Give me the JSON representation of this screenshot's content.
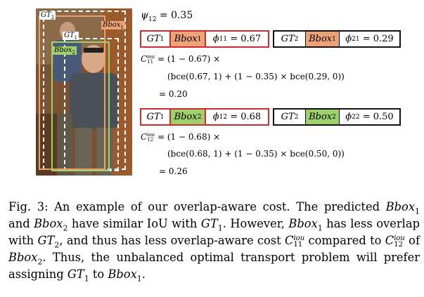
{
  "figure": {
    "labels": {
      "gt2": "GT",
      "gt2_sub": "2",
      "gt1": "GT",
      "gt1_sub": "1",
      "bbox1": "Bbox",
      "bbox1_sub": "1",
      "bbox2": "Bbox",
      "bbox2_sub": "2"
    },
    "colors": {
      "red": "#d12a2a",
      "orange": "#eea27a",
      "green": "#9ed06c"
    }
  },
  "psi": {
    "lhs": "ψ",
    "sub": "12",
    "value": "= 0.35"
  },
  "row1": {
    "left": {
      "gt": "GT",
      "gt_sub": "1",
      "bbox": "Bbox",
      "bbox_sub": "1",
      "phi": "ϕ",
      "phi_sub": "11",
      "value": "= 0.67"
    },
    "right": {
      "gt": "GT",
      "gt_sub": "2",
      "bbox": "Bbox",
      "bbox_sub": "1",
      "phi": "ϕ",
      "phi_sub": "21",
      "value": "= 0.29"
    }
  },
  "cost1": {
    "c": "C",
    "sup": "iou",
    "sub": "11",
    "line1": "= (1 − 0.67) ×",
    "line2": "(bce(0.67, 1) + (1 − 0.35) × bce(0.29, 0))",
    "line3": "= 0.20"
  },
  "row2": {
    "left": {
      "gt": "GT",
      "gt_sub": "1",
      "bbox": "Bbox",
      "bbox_sub": "2",
      "phi": "ϕ",
      "phi_sub": "12",
      "value": "= 0.68"
    },
    "right": {
      "gt": "GT",
      "gt_sub": "2",
      "bbox": "Bbox",
      "bbox_sub": "2",
      "phi": "ϕ",
      "phi_sub": "22",
      "value": "= 0.50"
    }
  },
  "cost2": {
    "c": "C",
    "sup": "iou",
    "sub": "12",
    "line1": "= (1 − 0.68) ×",
    "line2": "(bce(0.68, 1) + (1 − 0.35) × bce(0.50, 0))",
    "line3": "= 0.26"
  },
  "caption": {
    "p1": "Fig. 3: An example of our overlap-aware cost. The predicted ",
    "bbox": "Bbox",
    "gt": "GT",
    "s1": "1",
    "s2": "2",
    "p2": " and ",
    "p3": " have similar IoU with ",
    "p4": ". However, ",
    "p5": " has less overlap with ",
    "p6": ", and thus has less overlap-aware cost ",
    "c": "C",
    "iou": "iou",
    "s11": "11",
    "s12": "12",
    "p7": " compared to ",
    "p8": " of ",
    "p9": ". Thus, the unbalanced optimal transport problem will prefer assigning ",
    "p10": " to ",
    "p11": "."
  }
}
